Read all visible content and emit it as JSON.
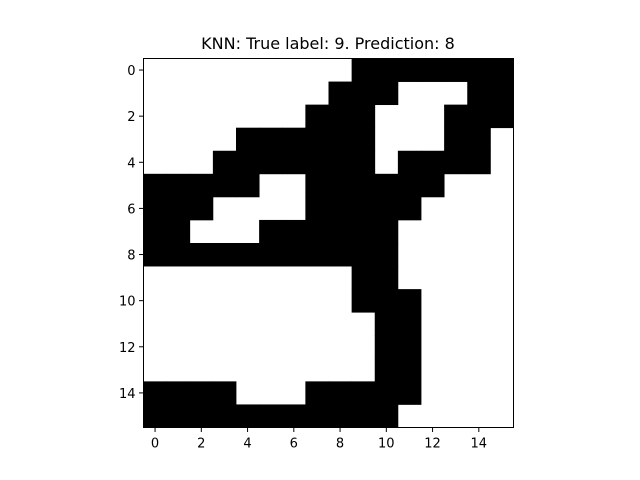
{
  "chart_data": {
    "type": "heatmap",
    "title": "KNN: True label: 9. Prediction: 8",
    "colormap": "binary",
    "colors": {
      "on": "#000000",
      "off": "#ffffff"
    },
    "grid": false,
    "xticks": [
      0,
      2,
      4,
      6,
      8,
      10,
      12,
      14
    ],
    "yticks": [
      0,
      2,
      4,
      6,
      8,
      10,
      12,
      14
    ],
    "xlim": [
      -0.5,
      15.5
    ],
    "ylim": [
      15.5,
      -0.5
    ],
    "shape": [
      16,
      16
    ],
    "matrix": [
      [
        0,
        0,
        0,
        0,
        0,
        0,
        0,
        0,
        0,
        1,
        1,
        1,
        1,
        1,
        1,
        1
      ],
      [
        0,
        0,
        0,
        0,
        0,
        0,
        0,
        0,
        1,
        1,
        1,
        0,
        0,
        0,
        1,
        1
      ],
      [
        0,
        0,
        0,
        0,
        0,
        0,
        0,
        1,
        1,
        1,
        0,
        0,
        0,
        1,
        1,
        1
      ],
      [
        0,
        0,
        0,
        0,
        1,
        1,
        1,
        1,
        1,
        1,
        0,
        0,
        0,
        1,
        1,
        0
      ],
      [
        0,
        0,
        0,
        1,
        1,
        1,
        1,
        1,
        1,
        1,
        0,
        1,
        1,
        1,
        1,
        0
      ],
      [
        1,
        1,
        1,
        1,
        1,
        0,
        0,
        1,
        1,
        1,
        1,
        1,
        1,
        0,
        0,
        0
      ],
      [
        1,
        1,
        1,
        0,
        0,
        0,
        0,
        1,
        1,
        1,
        1,
        1,
        0,
        0,
        0,
        0
      ],
      [
        1,
        1,
        0,
        0,
        0,
        1,
        1,
        1,
        1,
        1,
        1,
        0,
        0,
        0,
        0,
        0
      ],
      [
        1,
        1,
        1,
        1,
        1,
        1,
        1,
        1,
        1,
        1,
        1,
        0,
        0,
        0,
        0,
        0
      ],
      [
        0,
        0,
        0,
        0,
        0,
        0,
        0,
        0,
        0,
        1,
        1,
        0,
        0,
        0,
        0,
        0
      ],
      [
        0,
        0,
        0,
        0,
        0,
        0,
        0,
        0,
        0,
        1,
        1,
        1,
        0,
        0,
        0,
        0
      ],
      [
        0,
        0,
        0,
        0,
        0,
        0,
        0,
        0,
        0,
        0,
        1,
        1,
        0,
        0,
        0,
        0
      ],
      [
        0,
        0,
        0,
        0,
        0,
        0,
        0,
        0,
        0,
        0,
        1,
        1,
        0,
        0,
        0,
        0
      ],
      [
        0,
        0,
        0,
        0,
        0,
        0,
        0,
        0,
        0,
        0,
        1,
        1,
        0,
        0,
        0,
        0
      ],
      [
        1,
        1,
        1,
        1,
        0,
        0,
        0,
        1,
        1,
        1,
        1,
        1,
        0,
        0,
        0,
        0
      ],
      [
        1,
        1,
        1,
        1,
        1,
        1,
        1,
        1,
        1,
        1,
        1,
        0,
        0,
        0,
        0,
        0
      ]
    ]
  }
}
